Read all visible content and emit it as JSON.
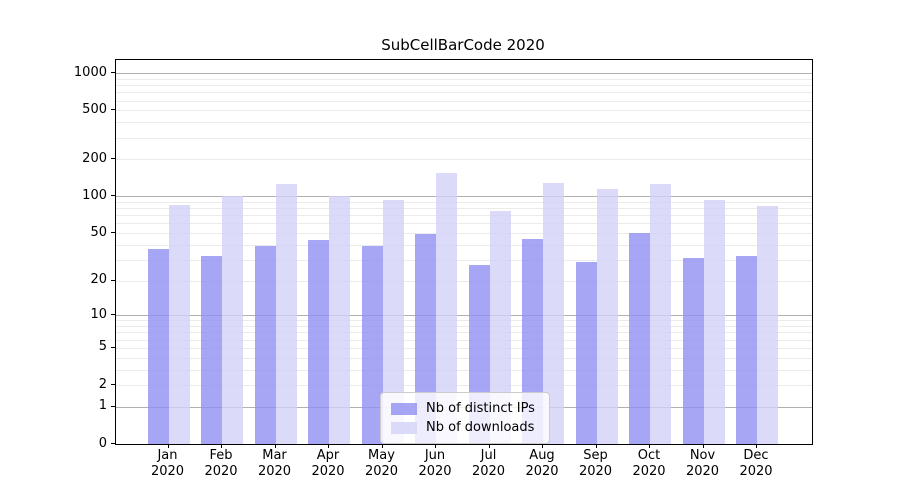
{
  "figure": {
    "background": "#ffffff"
  },
  "chart_data": {
    "type": "bar",
    "title": "SubCellBarCode 2020",
    "categories": [
      "Jan",
      "Feb",
      "Mar",
      "Apr",
      "May",
      "Jun",
      "Jul",
      "Aug",
      "Sep",
      "Oct",
      "Nov",
      "Dec"
    ],
    "category_year": "2020",
    "series": [
      {
        "name": "Nb of distinct IPs",
        "color": "#9090f2",
        "values": [
          37,
          32,
          39,
          44,
          39,
          49,
          27,
          45,
          29,
          50,
          31,
          32
        ]
      },
      {
        "name": "Nb of downloads",
        "color": "#d2d2f7",
        "values": [
          85,
          101,
          126,
          100,
          94,
          155,
          76,
          128,
          114,
          126,
          93,
          84
        ]
      }
    ],
    "xlabel": "",
    "ylabel": "",
    "yscale": "log1p",
    "ylim": [
      0,
      1280
    ],
    "yticks": [
      1000,
      500,
      200,
      100,
      50,
      20,
      10,
      5,
      2,
      1,
      0
    ],
    "grid": {
      "major_values": [
        1,
        10,
        100,
        1000
      ],
      "minor_values": [
        2,
        3,
        4,
        5,
        6,
        7,
        8,
        9,
        20,
        30,
        40,
        50,
        60,
        70,
        80,
        90,
        200,
        300,
        400,
        500,
        600,
        700,
        800,
        900
      ],
      "major_color": "#b0b0b0",
      "minor_color": "#ebebeb"
    },
    "legend": {
      "position": "lower center"
    }
  }
}
